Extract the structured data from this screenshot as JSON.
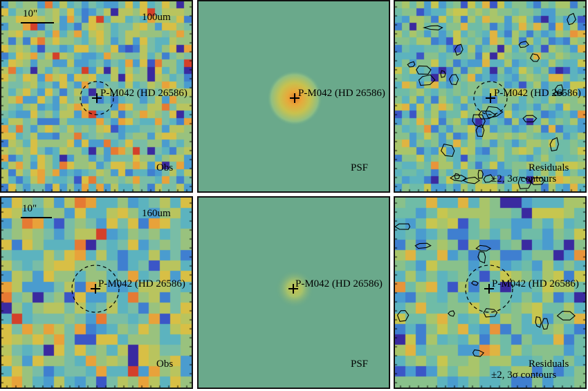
{
  "panels": [
    {
      "id": "p00",
      "kind": "obs",
      "band_label": "100um",
      "scale_label": "10\"",
      "source_label": "P-M042 (HD 26586)",
      "corner_label": "Obs",
      "grid": 26,
      "seed": 11,
      "palette": "noisy",
      "circle": true,
      "contours": false,
      "psf": false
    },
    {
      "id": "p01",
      "kind": "psf",
      "source_label": "P-M042 (HD 26586)",
      "corner_label": "PSF",
      "psf_core": "bright"
    },
    {
      "id": "p02",
      "kind": "resid",
      "source_label": "P-M042 (HD 26586)",
      "corner_label": "Residuals",
      "corner_label_2": "±2, 3σ contours",
      "grid": 26,
      "seed": 29,
      "palette": "cool",
      "circle": true,
      "contours": true
    },
    {
      "id": "p10",
      "kind": "obs",
      "band_label": "160um",
      "scale_label": "10\"",
      "source_label": "P-M042 (HD 26586)",
      "corner_label": "Obs",
      "grid": 18,
      "seed": 47,
      "palette": "noisy",
      "circle": true,
      "contours": false,
      "psf": false
    },
    {
      "id": "p11",
      "kind": "psf",
      "source_label": "P-M042 (HD 26586)",
      "corner_label": "PSF",
      "psf_core": "faint"
    },
    {
      "id": "p12",
      "kind": "resid",
      "source_label": "P-M042 (HD 26586)",
      "corner_label": "Residuals",
      "corner_label_2": "±2, 3σ contours",
      "grid": 18,
      "seed": 83,
      "palette": "cool",
      "circle": true,
      "contours": true
    }
  ],
  "colors": {
    "psf_background": "#6aa98b",
    "marker": "#000000"
  }
}
